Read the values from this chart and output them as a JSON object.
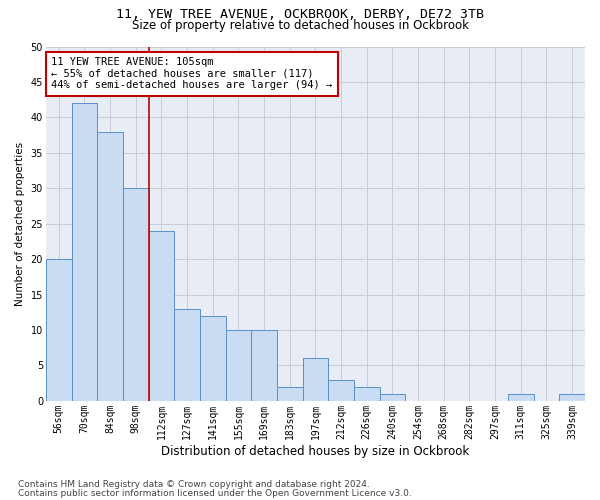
{
  "title1": "11, YEW TREE AVENUE, OCKBROOK, DERBY, DE72 3TB",
  "title2": "Size of property relative to detached houses in Ockbrook",
  "xlabel": "Distribution of detached houses by size in Ockbrook",
  "ylabel": "Number of detached properties",
  "categories": [
    "56sqm",
    "70sqm",
    "84sqm",
    "98sqm",
    "112sqm",
    "127sqm",
    "141sqm",
    "155sqm",
    "169sqm",
    "183sqm",
    "197sqm",
    "212sqm",
    "226sqm",
    "240sqm",
    "254sqm",
    "268sqm",
    "282sqm",
    "297sqm",
    "311sqm",
    "325sqm",
    "339sqm"
  ],
  "values": [
    20,
    42,
    38,
    30,
    24,
    13,
    12,
    10,
    10,
    2,
    6,
    3,
    2,
    1,
    0,
    0,
    0,
    0,
    1,
    0,
    1
  ],
  "bar_color": "#c9ddf2",
  "bar_edge_color": "#5b8fc9",
  "vline_x": 3.5,
  "vline_color": "#c00000",
  "annotation_text": "11 YEW TREE AVENUE: 105sqm\n← 55% of detached houses are smaller (117)\n44% of semi-detached houses are larger (94) →",
  "annotation_box_color": "#ffffff",
  "annotation_box_edge": "#c00000",
  "ylim": [
    0,
    50
  ],
  "yticks": [
    0,
    5,
    10,
    15,
    20,
    25,
    30,
    35,
    40,
    45,
    50
  ],
  "footer1": "Contains HM Land Registry data © Crown copyright and database right 2024.",
  "footer2": "Contains public sector information licensed under the Open Government Licence v3.0.",
  "background_color": "#ffffff",
  "plot_bg_color": "#e8edf5",
  "grid_color": "#c8cdd8",
  "title1_fontsize": 9.5,
  "title2_fontsize": 8.5,
  "xlabel_fontsize": 8.5,
  "ylabel_fontsize": 7.5,
  "tick_fontsize": 7,
  "annotation_fontsize": 7.5,
  "footer_fontsize": 6.5
}
